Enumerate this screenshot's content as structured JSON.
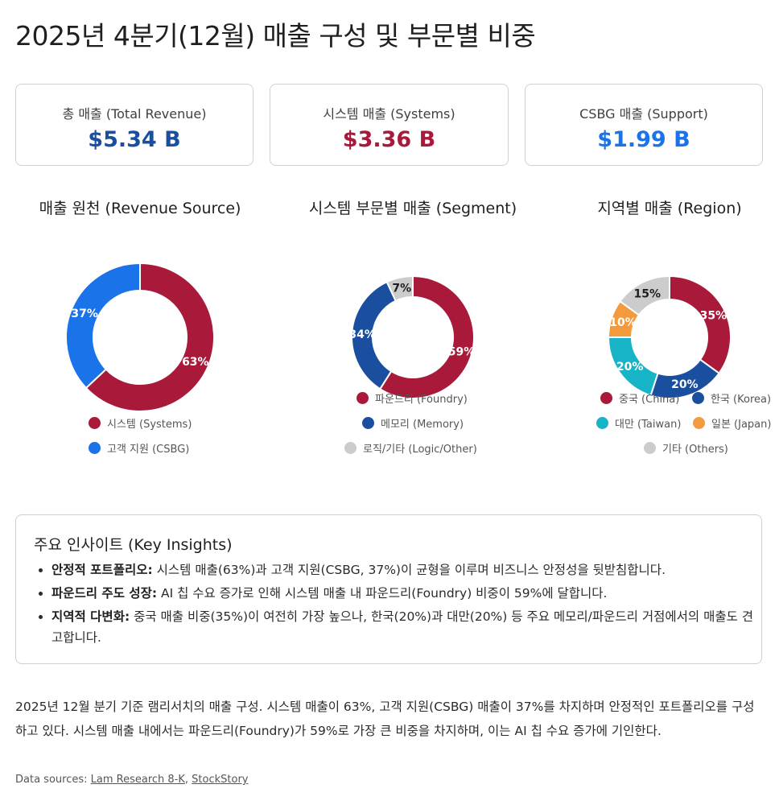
{
  "title": "2025년 4분기(12월) 매출 구성 및 부문별 비중",
  "kpis": [
    {
      "label": "총 매출 (Total Revenue)",
      "value": "$5.34 B",
      "color": "#1a4fa0"
    },
    {
      "label": "시스템 매출 (Systems)",
      "value": "$3.36 B",
      "color": "#a8193a"
    },
    {
      "label": "CSBG 매출 (Support)",
      "value": "$1.99 B",
      "color": "#1a73e8"
    }
  ],
  "chart_data": [
    {
      "type": "pie",
      "title": "매출 원천 (Revenue Source)",
      "slices": [
        {
          "name": "시스템 (Systems)",
          "value": 63,
          "label": "63%",
          "color": "#a8193a"
        },
        {
          "name": "고객 지원 (CSBG)",
          "value": 37,
          "label": "37%",
          "color": "#1a73e8"
        }
      ]
    },
    {
      "type": "pie",
      "title": "시스템 부문별 매출 (Segment)",
      "slices": [
        {
          "name": "파운드리 (Foundry)",
          "value": 59,
          "label": "59%",
          "color": "#a8193a"
        },
        {
          "name": "메모리 (Memory)",
          "value": 34,
          "label": "34%",
          "color": "#1a4fa0"
        },
        {
          "name": "로직/기타 (Logic/Other)",
          "value": 7,
          "label": "7%",
          "color": "#cccccc"
        }
      ]
    },
    {
      "type": "pie",
      "title": "지역별 매출 (Region)",
      "slices": [
        {
          "name": "중국 (China)",
          "value": 35,
          "label": "35%",
          "color": "#a8193a"
        },
        {
          "name": "한국 (Korea)",
          "value": 20,
          "label": "20%",
          "color": "#1a4fa0"
        },
        {
          "name": "대만 (Taiwan)",
          "value": 20,
          "label": "20%",
          "color": "#17b3c6"
        },
        {
          "name": "일본 (Japan)",
          "value": 10,
          "label": "10%",
          "color": "#f39a3c"
        },
        {
          "name": "기타 (Others)",
          "value": 15,
          "label": "15%",
          "color": "#cccccc"
        }
      ]
    }
  ],
  "insights": {
    "heading": "주요 인사이트 (Key Insights)",
    "items": [
      {
        "bold": "안정적 포트폴리오:",
        "text": " 시스템 매출(63%)과 고객 지원(CSBG, 37%)이 균형을 이루며 비즈니스 안정성을 뒷받침합니다."
      },
      {
        "bold": "파운드리 주도 성장:",
        "text": " AI 칩 수요 증가로 인해 시스템 매출 내 파운드리(Foundry) 비중이 59%에 달합니다."
      },
      {
        "bold": "지역적 다변화:",
        "text": " 중국 매출 비중(35%)이 여전히 가장 높으나, 한국(20%)과 대만(20%) 등 주요 메모리/파운드리 거점에서의 매출도 견고합니다."
      }
    ]
  },
  "summary": "2025년 12월 분기 기준 램리서치의 매출 구성. 시스템 매출이 63%, 고객 지원(CSBG) 매출이 37%를 차지하며 안정적인 포트폴리오를 구성하고 있다. 시스템 매출 내에서는 파운드리(Foundry)가 59%로 가장 큰 비중을 차지하며, 이는 AI 칩 수요 증가에 기인한다.",
  "sources": {
    "prefix": "Data sources: ",
    "links": [
      "Lam Research 8-K",
      "StockStory"
    ],
    "separator": ", "
  }
}
